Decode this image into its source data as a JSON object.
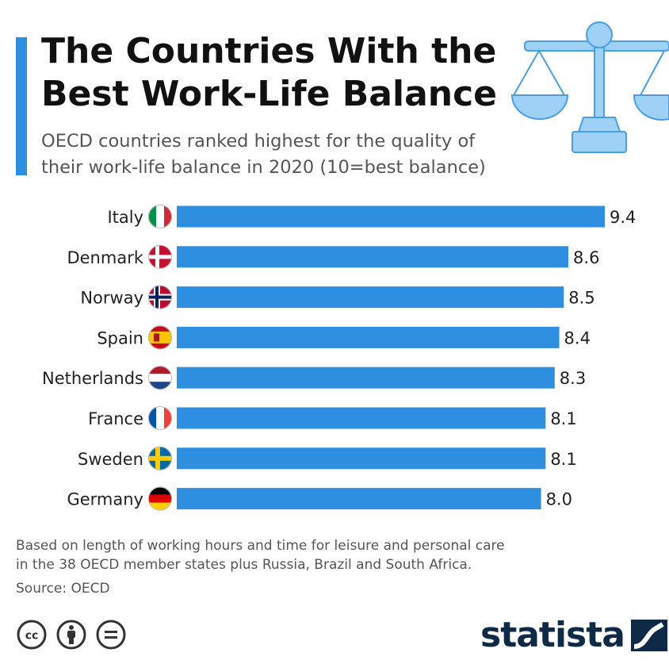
{
  "header": {
    "title_line1": "The Countries With the",
    "title_line2": "Best Work-Life Balance",
    "subtitle_line1": "OECD countries ranked highest for the quality of",
    "subtitle_line2": "their work-life balance in 2020 (10=best balance)"
  },
  "chart_data": {
    "type": "bar",
    "orientation": "horizontal",
    "categories": [
      "Italy",
      "Denmark",
      "Norway",
      "Spain",
      "Netherlands",
      "France",
      "Sweden",
      "Germany"
    ],
    "values": [
      9.4,
      8.6,
      8.5,
      8.4,
      8.3,
      8.1,
      8.1,
      8.0
    ],
    "value_labels": [
      "9.4",
      "8.6",
      "8.5",
      "8.4",
      "8.3",
      "8.1",
      "8.1",
      "8.0"
    ],
    "xlim": [
      0,
      9.4
    ],
    "grid": false,
    "bar_color": "#2e8fe0"
  },
  "footer": {
    "note_line1": "Based on length of working hours and time for leisure and personal care",
    "note_line2": "in the 38 OECD member states plus Russia, Brazil and South Africa.",
    "source": "Source: OECD",
    "brand": "statista"
  },
  "icons": {
    "header": "balance-scale-icon",
    "license": [
      "creative-commons-icon",
      "attribution-icon",
      "no-derivatives-icon"
    ],
    "flags": [
      "flag-italy-icon",
      "flag-denmark-icon",
      "flag-norway-icon",
      "flag-spain-icon",
      "flag-netherlands-icon",
      "flag-france-icon",
      "flag-sweden-icon",
      "flag-germany-icon"
    ]
  },
  "colors": {
    "accent": "#2e8fe0",
    "icon_light": "#9fd0f5",
    "brand_dark": "#0e2a47"
  }
}
